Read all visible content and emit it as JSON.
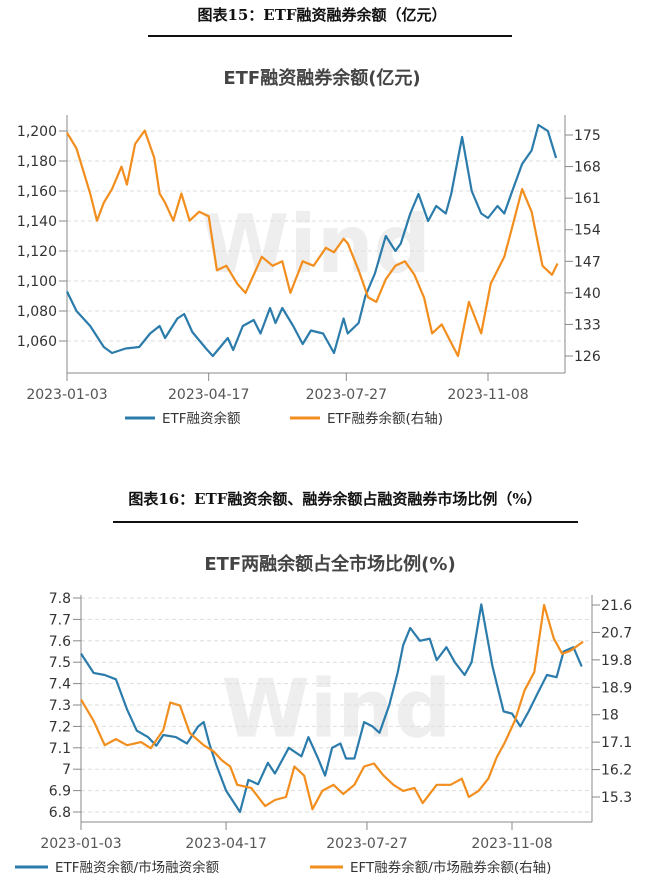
{
  "chart_data": [
    {
      "type": "line",
      "caption": "图表15：ETF融资融券余额（亿元）",
      "title": "ETF融资融券余额(亿元)",
      "watermark": "Wind",
      "x_ticks": [
        "2023-01-03",
        "2023-04-17",
        "2023-07-27",
        "2023-11-08"
      ],
      "y_left": {
        "ticks": [
          "1,060",
          "1,080",
          "1,100",
          "1,120",
          "1,140",
          "1,160",
          "1,180",
          "1,200"
        ],
        "values": [
          1060,
          1080,
          1100,
          1120,
          1140,
          1160,
          1180,
          1200
        ]
      },
      "y_right": {
        "ticks": [
          "126",
          "133",
          "140",
          "147",
          "154",
          "161",
          "168",
          "175"
        ],
        "values": [
          126,
          133,
          140,
          147,
          154,
          161,
          168,
          175
        ]
      },
      "grid": true,
      "legend": "bottom",
      "series": [
        {
          "name": "ETF融资余额",
          "axis": "left",
          "color": "#2b7bab",
          "x": [
            "01-03",
            "01-10",
            "01-20",
            "01-30",
            "02-05",
            "02-15",
            "02-25",
            "03-05",
            "03-12",
            "03-16",
            "03-25",
            "03-30",
            "04-05",
            "04-15",
            "04-20",
            "05-01",
            "05-05",
            "05-12",
            "05-20",
            "05-25",
            "06-01",
            "06-05",
            "06-10",
            "06-18",
            "06-25",
            "07-01",
            "07-10",
            "07-18",
            "07-25",
            "07-28",
            "08-05",
            "08-10",
            "08-17",
            "08-25",
            "09-01",
            "09-05",
            "09-12",
            "09-18",
            "09-25",
            "10-01",
            "10-08",
            "10-12",
            "10-20",
            "10-27",
            "11-03",
            "11-08",
            "11-15",
            "11-20",
            "11-25",
            "12-03",
            "12-10",
            "12-15",
            "12-22",
            "12-28"
          ],
          "values": [
            1093,
            1080,
            1070,
            1056,
            1052,
            1055,
            1056,
            1065,
            1070,
            1062,
            1075,
            1078,
            1066,
            1055,
            1050,
            1062,
            1054,
            1070,
            1074,
            1065,
            1082,
            1072,
            1082,
            1070,
            1058,
            1067,
            1065,
            1052,
            1075,
            1065,
            1072,
            1090,
            1105,
            1130,
            1120,
            1125,
            1145,
            1158,
            1140,
            1150,
            1145,
            1158,
            1196,
            1160,
            1145,
            1142,
            1150,
            1145,
            1158,
            1178,
            1187,
            1204,
            1200,
            1182
          ]
        },
        {
          "name": "ETF融券余额(右轴)",
          "axis": "right",
          "color": "#f28e1e",
          "x": [
            "01-03",
            "01-10",
            "01-20",
            "01-25",
            "01-30",
            "02-05",
            "02-12",
            "02-16",
            "02-22",
            "03-01",
            "03-08",
            "03-12",
            "03-16",
            "03-22",
            "03-28",
            "04-03",
            "04-10",
            "04-17",
            "04-23",
            "04-30",
            "05-08",
            "05-14",
            "05-20",
            "05-26",
            "06-03",
            "06-10",
            "06-16",
            "06-25",
            "07-03",
            "07-12",
            "07-18",
            "07-25",
            "07-28",
            "08-05",
            "08-12",
            "08-18",
            "08-25",
            "09-01",
            "09-08",
            "09-15",
            "09-22",
            "09-28",
            "10-05",
            "10-17",
            "10-25",
            "11-03",
            "11-10",
            "11-20",
            "11-27",
            "12-03",
            "12-10",
            "12-18",
            "12-25",
            "12-29"
          ],
          "values": [
            175.5,
            172,
            162,
            156,
            160,
            163,
            168,
            164,
            173,
            176,
            170,
            162,
            160,
            156,
            162,
            156,
            158,
            157,
            145,
            146,
            142,
            140,
            144,
            148,
            146,
            147,
            140,
            147,
            146,
            150,
            149,
            152,
            151,
            145,
            139,
            138,
            143,
            146,
            147,
            144,
            139,
            131,
            133,
            126,
            138,
            131,
            142,
            148,
            156,
            163,
            158,
            146,
            144,
            146.5
          ]
        }
      ]
    },
    {
      "type": "line",
      "caption": "图表16：ETF融资余额、融券余额占融资融券市场比例（%）",
      "title": "ETF两融余额占全市场比例(%)",
      "watermark": "Wind",
      "x_ticks": [
        "2023-01-03",
        "2023-04-17",
        "2023-07-27",
        "2023-11-08"
      ],
      "y_left": {
        "ticks": [
          "6.8",
          "6.9",
          "7",
          "7.1",
          "7.2",
          "7.3",
          "7.4",
          "7.5",
          "7.6",
          "7.7",
          "7.8"
        ],
        "values": [
          6.8,
          6.9,
          7.0,
          7.1,
          7.2,
          7.3,
          7.4,
          7.5,
          7.6,
          7.7,
          7.8
        ]
      },
      "y_right": {
        "ticks": [
          "15.3",
          "16.2",
          "17.1",
          "18",
          "18.9",
          "19.8",
          "20.7",
          "21.6"
        ],
        "values": [
          15.3,
          16.2,
          17.1,
          18,
          18.9,
          19.8,
          20.7,
          21.6
        ]
      },
      "grid": true,
      "legend": "bottom",
      "series": [
        {
          "name": "ETF融资余额/市场融资余额",
          "axis": "left",
          "color": "#2b7bab",
          "x": [
            "01-03",
            "01-12",
            "01-20",
            "01-28",
            "02-05",
            "02-12",
            "02-20",
            "02-26",
            "03-03",
            "03-12",
            "03-20",
            "03-28",
            "04-01",
            "04-05",
            "04-10",
            "04-17",
            "04-27",
            "05-03",
            "05-10",
            "05-17",
            "05-22",
            "06-01",
            "06-10",
            "06-15",
            "06-22",
            "06-27",
            "07-02",
            "07-08",
            "07-12",
            "07-18",
            "07-25",
            "07-31",
            "08-05",
            "08-12",
            "08-18",
            "08-22",
            "08-27",
            "09-03",
            "09-10",
            "09-15",
            "09-22",
            "09-28",
            "10-05",
            "10-10",
            "10-17",
            "10-25",
            "11-02",
            "11-08",
            "11-14",
            "11-20",
            "11-26",
            "12-03",
            "12-10",
            "12-15",
            "12-22",
            "12-28"
          ],
          "values": [
            7.54,
            7.45,
            7.44,
            7.42,
            7.28,
            7.18,
            7.15,
            7.11,
            7.16,
            7.15,
            7.12,
            7.2,
            7.22,
            7.12,
            7.02,
            6.9,
            6.8,
            6.95,
            6.93,
            7.03,
            6.98,
            7.1,
            7.06,
            7.15,
            7.05,
            6.97,
            7.1,
            7.12,
            7.05,
            7.05,
            7.22,
            7.2,
            7.17,
            7.3,
            7.45,
            7.58,
            7.66,
            7.6,
            7.61,
            7.51,
            7.57,
            7.5,
            7.44,
            7.5,
            7.77,
            7.48,
            7.27,
            7.26,
            7.2,
            7.27,
            7.35,
            7.44,
            7.43,
            7.55,
            7.57,
            7.48
          ]
        },
        {
          "name": "EFT融券余额/市场融券余额(右轴)",
          "axis": "right",
          "color": "#f28e1e",
          "x": [
            "01-03",
            "01-12",
            "01-20",
            "01-28",
            "02-05",
            "02-15",
            "02-22",
            "03-03",
            "03-08",
            "03-15",
            "03-22",
            "04-01",
            "04-08",
            "04-14",
            "04-20",
            "04-25",
            "05-05",
            "05-15",
            "05-22",
            "05-30",
            "06-05",
            "06-12",
            "06-18",
            "06-25",
            "07-03",
            "07-10",
            "07-18",
            "07-25",
            "08-01",
            "08-08",
            "08-15",
            "08-22",
            "08-30",
            "09-05",
            "09-15",
            "09-25",
            "10-03",
            "10-08",
            "10-15",
            "10-22",
            "10-28",
            "11-03",
            "11-10",
            "11-17",
            "11-24",
            "12-01",
            "12-08",
            "12-14",
            "12-20",
            "12-29"
          ],
          "values": [
            18.5,
            17.8,
            17.0,
            17.2,
            17.0,
            17.1,
            16.9,
            17.5,
            18.4,
            18.3,
            17.4,
            17.0,
            16.8,
            16.5,
            16.3,
            15.7,
            15.6,
            15.0,
            15.2,
            15.3,
            16.3,
            16.0,
            14.9,
            15.5,
            15.7,
            15.4,
            15.7,
            16.3,
            16.4,
            16.0,
            15.7,
            15.5,
            15.6,
            15.1,
            15.7,
            15.7,
            15.9,
            15.3,
            15.5,
            15.9,
            16.6,
            17.1,
            17.8,
            18.8,
            19.4,
            21.6,
            20.5,
            20.0,
            20.1,
            20.4
          ]
        }
      ]
    }
  ]
}
